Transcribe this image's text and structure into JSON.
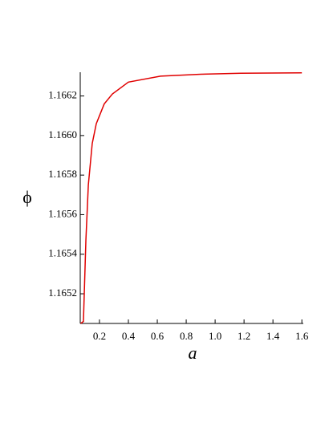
{
  "chart_data": {
    "type": "line",
    "x_label": "a",
    "y_label": "ϕ",
    "x": [
      0.07,
      0.089,
      0.106,
      0.123,
      0.15,
      0.178,
      0.233,
      0.289,
      0.4,
      0.622,
      0.9,
      1.178,
      1.6
    ],
    "series": [
      {
        "color": "#e00000",
        "values": [
          1.16505,
          1.16506,
          1.16547,
          1.16575,
          1.16596,
          1.16606,
          1.16616,
          1.16621,
          1.16627,
          1.1663,
          1.16631,
          1.166315,
          1.166317
        ]
      }
    ],
    "xlim": [
      0.067,
      1.61
    ],
    "ylim": [
      1.16505,
      1.16632
    ],
    "xticks": [
      0.2,
      0.4,
      0.6,
      0.8,
      {
        "value": 1,
        "label": "1.0"
      },
      1.2,
      1.4,
      1.6
    ],
    "yticks": [
      1.1652,
      1.1654,
      1.1656,
      1.1658,
      {
        "value": 1.166,
        "label": "1.1660"
      },
      1.1662
    ]
  }
}
